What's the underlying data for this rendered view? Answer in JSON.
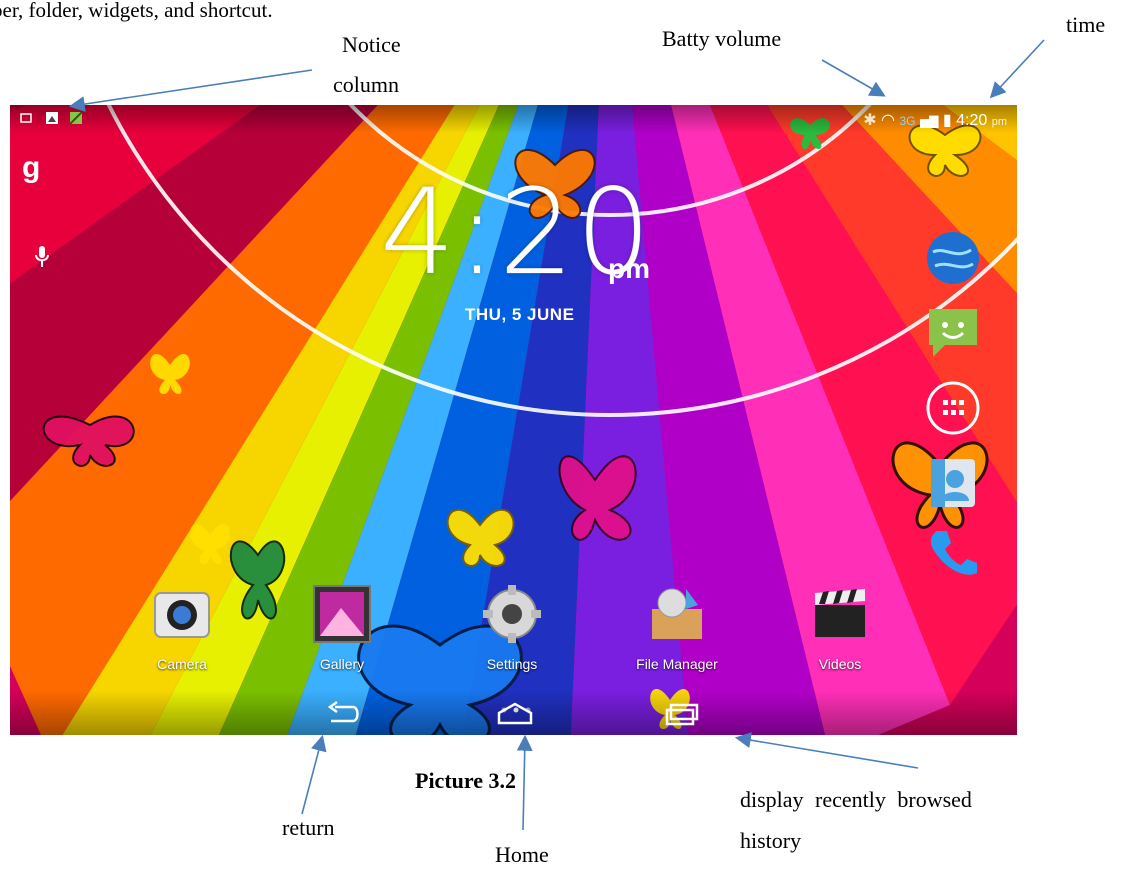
{
  "document": {
    "top_text": "per, folder, widgets, and shortcut.",
    "caption": "Picture 3.2",
    "annotations": {
      "notice": "Notice",
      "notice_2": "column",
      "battery": "Batty volume",
      "time": "time",
      "return": "return",
      "home": "Home",
      "recent_1": "display    recently    browsed",
      "recent_2": "history"
    }
  },
  "status_bar": {
    "network": "3G",
    "time": "4:20",
    "ampm": "pm",
    "icons": [
      "screenshot-icon",
      "photo-icon",
      "image-icon",
      "bluetooth-icon",
      "wifi-icon",
      "signal-icon",
      "battery-icon"
    ]
  },
  "clock_widget": {
    "time": "4:20",
    "ampm": "pm",
    "date": "THU, 5 JUNE"
  },
  "search": {
    "google_glyph": "g"
  },
  "dock_apps": [
    {
      "label": "Camera",
      "icon": "camera-icon"
    },
    {
      "label": "Gallery",
      "icon": "gallery-icon"
    },
    {
      "label": "Settings",
      "icon": "settings-icon"
    },
    {
      "label": "File Manager",
      "icon": "file-manager-icon"
    },
    {
      "label": "Videos",
      "icon": "videos-icon"
    }
  ],
  "side_dock": [
    "browser-icon",
    "messaging-icon",
    "all-apps-icon",
    "contacts-icon",
    "phone-icon"
  ],
  "nav_bar": [
    "back-icon",
    "home-icon",
    "recent-apps-icon"
  ],
  "colors": {
    "arrow": "#4a7ebb",
    "caption_text": "#000000",
    "statusbar_text": "#ffffff"
  }
}
